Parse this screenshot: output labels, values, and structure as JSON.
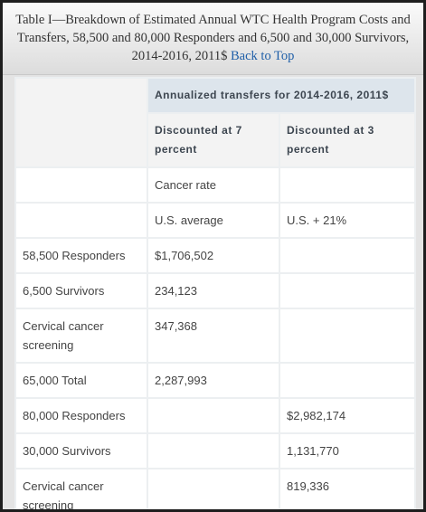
{
  "header": {
    "title": "Table I—Breakdown of Estimated Annual WTC Health Program Costs and Transfers, 58,500 and 80,000 Responders and 6,500 and 30,000 Survivors, 2014-2016, 2011$",
    "link": "Back to Top"
  },
  "table": {
    "group_header": "Annualized transfers for 2014-2016, 2011$",
    "columns": [
      "Discounted at 7 percent",
      "Discounted at 3 percent"
    ],
    "rows": [
      [
        null,
        "Cancer rate",
        null
      ],
      [
        null,
        "U.S. average",
        "U.S. + 21%"
      ],
      [
        "58,500 Responders",
        "$1,706,502",
        null
      ],
      [
        "6,500 Survivors",
        "234,123",
        null
      ],
      [
        "Cervical cancer screening",
        "347,368",
        null
      ],
      [
        "65,000 Total",
        "2,287,993",
        null
      ],
      [
        "80,000 Responders",
        null,
        "$2,982,174"
      ],
      [
        "30,000 Survivors",
        null,
        "1,131,770"
      ],
      [
        "Cervical cancer screening",
        null,
        "819,336"
      ]
    ]
  }
}
